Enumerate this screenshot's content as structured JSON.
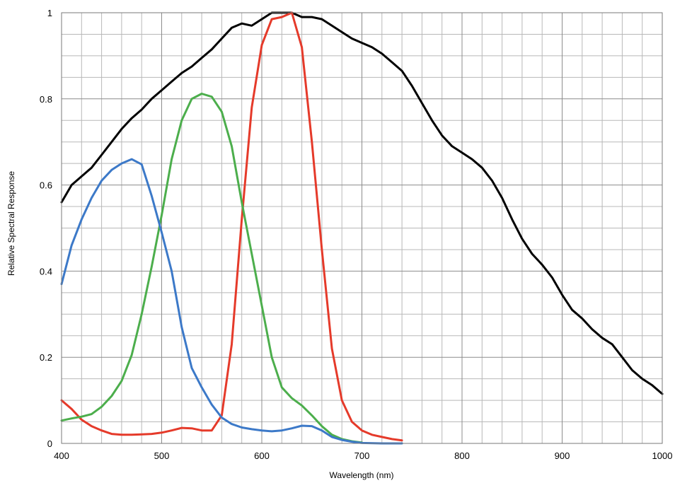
{
  "chart_data": {
    "type": "line",
    "title": "",
    "xlabel": "Wavelength (nm)",
    "ylabel": "Relative Spectral Response",
    "xlim": [
      400,
      1000
    ],
    "ylim": [
      0,
      1
    ],
    "x_ticks": [
      "400",
      "500",
      "600",
      "700",
      "800",
      "900",
      "1000"
    ],
    "y_ticks": [
      "0",
      "0.2",
      "0.4",
      "0.6",
      "0.8",
      "1"
    ],
    "grid": true,
    "legend": "none",
    "series": [
      {
        "color": "#000000",
        "x": [
          400,
          410,
          420,
          430,
          440,
          450,
          460,
          470,
          480,
          490,
          500,
          510,
          520,
          530,
          540,
          550,
          560,
          570,
          580,
          590,
          600,
          610,
          620,
          630,
          640,
          650,
          660,
          670,
          680,
          690,
          700,
          710,
          720,
          730,
          740,
          750,
          760,
          770,
          780,
          790,
          800,
          810,
          820,
          830,
          840,
          850,
          860,
          870,
          880,
          890,
          900,
          910,
          920,
          930,
          940,
          950,
          960,
          970,
          980,
          990,
          1000
        ],
        "values": [
          0.56,
          0.6,
          0.62,
          0.64,
          0.67,
          0.7,
          0.73,
          0.755,
          0.775,
          0.8,
          0.82,
          0.84,
          0.86,
          0.875,
          0.895,
          0.915,
          0.94,
          0.965,
          0.975,
          0.97,
          0.985,
          1.0,
          1.0,
          1.0,
          0.99,
          0.99,
          0.985,
          0.97,
          0.955,
          0.94,
          0.93,
          0.92,
          0.905,
          0.885,
          0.865,
          0.83,
          0.79,
          0.75,
          0.715,
          0.69,
          0.675,
          0.66,
          0.64,
          0.61,
          0.57,
          0.52,
          0.475,
          0.44,
          0.415,
          0.385,
          0.345,
          0.31,
          0.29,
          0.265,
          0.245,
          0.23,
          0.2,
          0.17,
          0.15,
          0.135,
          0.115
        ]
      },
      {
        "color": "#e53a2a",
        "x": [
          400,
          410,
          420,
          430,
          440,
          450,
          460,
          470,
          480,
          490,
          500,
          510,
          520,
          530,
          540,
          550,
          560,
          570,
          580,
          590,
          600,
          610,
          620,
          630,
          640,
          650,
          660,
          670,
          680,
          690,
          700,
          710,
          720,
          730,
          740
        ],
        "values": [
          0.1,
          0.08,
          0.055,
          0.04,
          0.03,
          0.022,
          0.02,
          0.02,
          0.021,
          0.022,
          0.025,
          0.03,
          0.036,
          0.035,
          0.03,
          0.03,
          0.065,
          0.23,
          0.52,
          0.78,
          0.925,
          0.985,
          0.99,
          1.0,
          0.92,
          0.7,
          0.45,
          0.22,
          0.1,
          0.05,
          0.03,
          0.02,
          0.015,
          0.01,
          0.007
        ]
      },
      {
        "color": "#4cae4c",
        "x": [
          400,
          410,
          420,
          430,
          440,
          450,
          460,
          470,
          480,
          490,
          500,
          510,
          520,
          530,
          540,
          550,
          560,
          570,
          580,
          590,
          600,
          610,
          620,
          630,
          640,
          650,
          660,
          670,
          680,
          690,
          700
        ],
        "values": [
          0.053,
          0.058,
          0.062,
          0.068,
          0.085,
          0.11,
          0.145,
          0.205,
          0.3,
          0.41,
          0.53,
          0.66,
          0.75,
          0.8,
          0.812,
          0.805,
          0.77,
          0.69,
          0.56,
          0.44,
          0.32,
          0.2,
          0.13,
          0.105,
          0.088,
          0.065,
          0.04,
          0.02,
          0.01,
          0.005,
          0.002
        ]
      },
      {
        "color": "#3c79c8",
        "x": [
          400,
          410,
          420,
          430,
          440,
          450,
          460,
          470,
          480,
          490,
          500,
          510,
          520,
          530,
          540,
          550,
          560,
          570,
          580,
          590,
          600,
          610,
          620,
          630,
          640,
          650,
          660,
          670,
          680,
          690,
          700,
          720,
          740
        ],
        "values": [
          0.37,
          0.46,
          0.52,
          0.57,
          0.61,
          0.635,
          0.65,
          0.66,
          0.648,
          0.575,
          0.49,
          0.4,
          0.27,
          0.175,
          0.13,
          0.09,
          0.06,
          0.045,
          0.037,
          0.033,
          0.03,
          0.028,
          0.03,
          0.035,
          0.041,
          0.04,
          0.03,
          0.015,
          0.008,
          0.004,
          0.001,
          0.0,
          0.0
        ]
      }
    ]
  }
}
